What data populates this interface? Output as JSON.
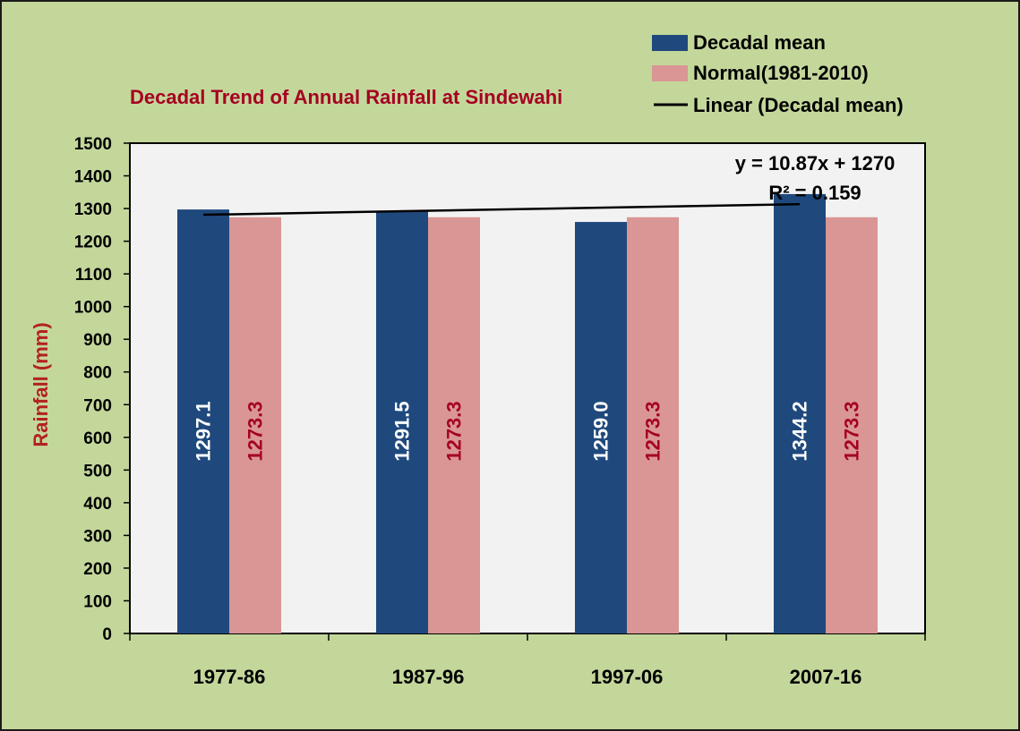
{
  "chart_data": {
    "type": "bar",
    "title": "Decadal Trend of Annual Rainfall at Sindewahi",
    "xlabel": "",
    "ylabel": "Rainfall (mm)",
    "categories": [
      "1977-86",
      "1987-96",
      "1997-06",
      "2007-16"
    ],
    "ylim": [
      0,
      1500
    ],
    "yticks": [
      0,
      100,
      200,
      300,
      400,
      500,
      600,
      700,
      800,
      900,
      1000,
      1100,
      1200,
      1300,
      1400,
      1500
    ],
    "series": [
      {
        "name": "Decadal mean",
        "values": [
          1297.1,
          1291.5,
          1259.0,
          1344.2
        ],
        "labels": [
          "1297.1",
          "1291.5",
          "1259.0",
          "1344.2"
        ],
        "color": "#1f497d",
        "label_color": "#ffffff"
      },
      {
        "name": "Normal(1981-2010)",
        "values": [
          1273.3,
          1273.3,
          1273.3,
          1273.3
        ],
        "labels": [
          "1273.3",
          "1273.3",
          "1273.3",
          "1273.3"
        ],
        "color": "#d99694",
        "label_color": "#a50021"
      }
    ],
    "trendline": {
      "name": "Linear (Decadal mean)",
      "slope": 10.87,
      "intercept": 1270,
      "equation": "y = 10.87x + 1270",
      "r_squared": "R² = 0.159",
      "color": "#000000"
    },
    "legend": "top-right",
    "grid": false,
    "plot_background": "#f2f2f2",
    "page_background": "#c4d79b"
  }
}
